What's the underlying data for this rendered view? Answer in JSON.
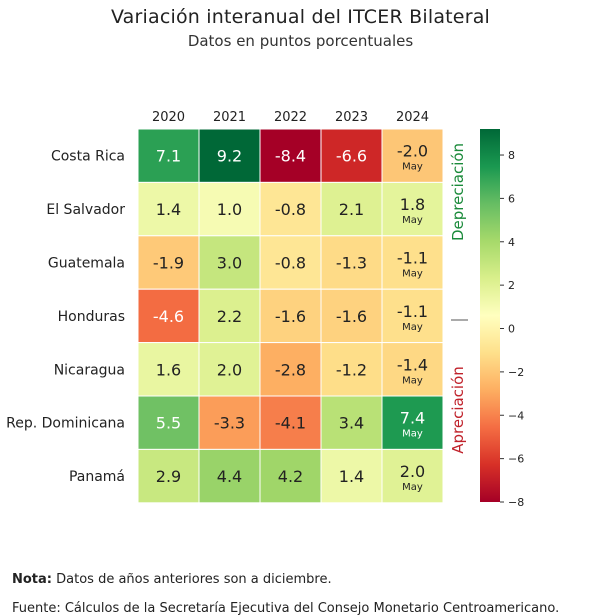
{
  "chart_data": {
    "type": "heatmap",
    "title": "Variación interanual del ITCER Bilateral",
    "subtitle": "Datos en puntos porcentuales",
    "columns": [
      "2020",
      "2021",
      "2022",
      "2023",
      "2024"
    ],
    "rows": [
      "Costa Rica",
      "El Salvador",
      "Guatemala",
      "Honduras",
      "Nicaragua",
      "Rep. Dominicana",
      "Panamá"
    ],
    "values": [
      [
        7.1,
        9.2,
        -8.4,
        -6.6,
        -2.0
      ],
      [
        1.4,
        1.0,
        -0.8,
        2.1,
        1.8
      ],
      [
        -1.9,
        3.0,
        -0.8,
        -1.3,
        -1.1
      ],
      [
        -4.6,
        2.2,
        -1.6,
        -1.6,
        -1.1
      ],
      [
        1.6,
        2.0,
        -2.8,
        -1.2,
        -1.4
      ],
      [
        5.5,
        -3.3,
        -4.1,
        3.4,
        7.4
      ],
      [
        2.9,
        4.4,
        4.2,
        1.4,
        2.0
      ]
    ],
    "value_labels": [
      [
        "7.1",
        "9.2",
        "-8.4",
        "-6.6",
        "-2.0"
      ],
      [
        "1.4",
        "1.0",
        "-0.8",
        "2.1",
        "1.8"
      ],
      [
        "-1.9",
        "3.0",
        "-0.8",
        "-1.3",
        "-1.1"
      ],
      [
        "-4.6",
        "2.2",
        "-1.6",
        "-1.6",
        "-1.1"
      ],
      [
        "1.6",
        "2.0",
        "-2.8",
        "-1.2",
        "-1.4"
      ],
      [
        "5.5",
        "-3.3",
        "-4.1",
        "3.4",
        "7.4"
      ],
      [
        "2.9",
        "4.4",
        "4.2",
        "1.4",
        "2.0"
      ]
    ],
    "last_column_note": "May",
    "side_labels": {
      "top": "Depreciación",
      "bottom": "Apreciación"
    },
    "colorbar": {
      "min": -8,
      "max": 9.2,
      "ticks": [
        8,
        6,
        4,
        2,
        0,
        -2,
        -4,
        -6,
        -8
      ],
      "tick_labels": [
        "8",
        "6",
        "4",
        "2",
        "0",
        "−2",
        "−4",
        "−6",
        "−8"
      ],
      "colormap": "RdYlGn"
    },
    "colors": {
      "depreciation": "#1a8a3a",
      "appreciation": "#c0222b"
    }
  },
  "footer": {
    "note_label": "Nota:",
    "note_text": "Datos de años anteriores son a diciembre.",
    "source_text": "Fuente: Cálculos de la Secretaría Ejecutiva del Consejo Monetario Centroamericano."
  }
}
